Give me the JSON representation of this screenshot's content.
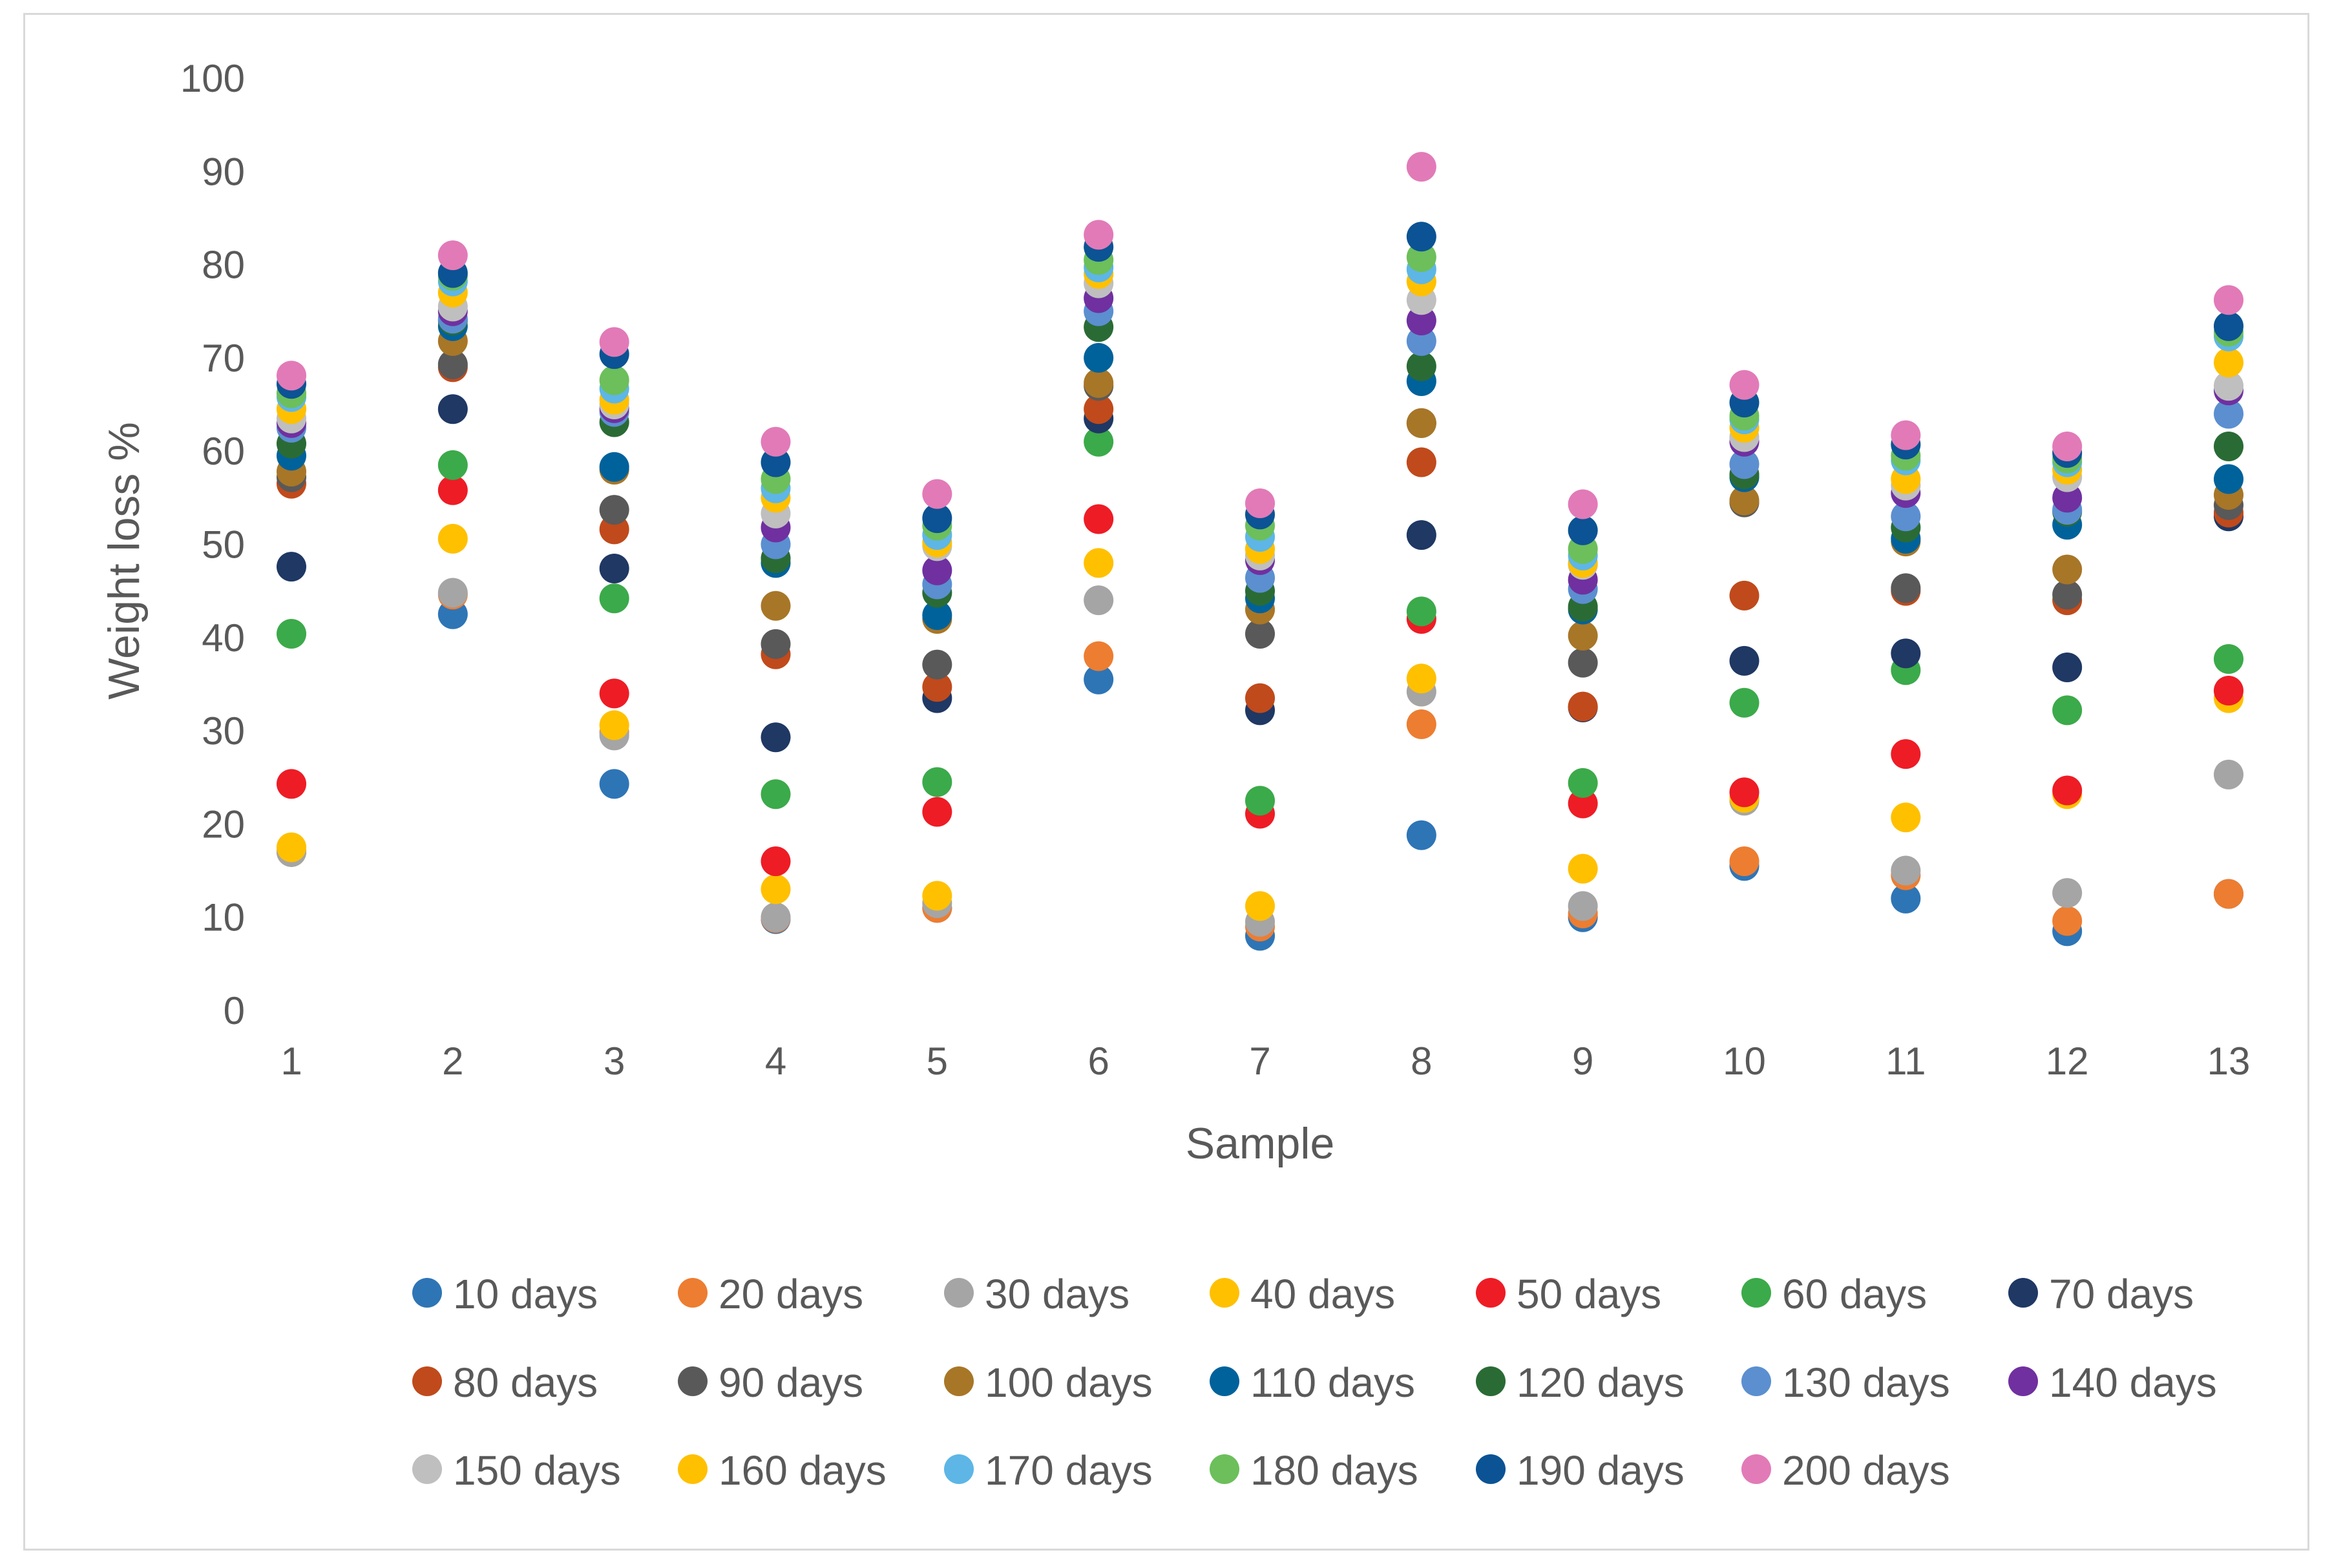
{
  "chart_data": {
    "type": "scatter",
    "title": "",
    "xlabel": "Sample",
    "ylabel": "Weight loss %",
    "x": [
      1,
      2,
      3,
      4,
      5,
      6,
      7,
      8,
      9,
      10,
      11,
      12,
      13
    ],
    "xticks": [
      "1",
      "2",
      "3",
      "4",
      "5",
      "6",
      "7",
      "8",
      "9",
      "10",
      "11",
      "12",
      "13"
    ],
    "yticks": [
      "0",
      "10",
      "20",
      "30",
      "40",
      "50",
      "60",
      "70",
      "80",
      "90",
      "100"
    ],
    "ylim": [
      0,
      100
    ],
    "grid": false,
    "legend_position": "bottom",
    "series": [
      {
        "name": "10 days",
        "color": "#2E75B6",
        "values": [
          17,
          42.5,
          24.3,
          9.8,
          11,
          35.5,
          8,
          18.8,
          10,
          15.5,
          12,
          8.5,
          12.5
        ]
      },
      {
        "name": "20 days",
        "color": "#ED7D31",
        "values": [
          17,
          44.6,
          29.8,
          9.9,
          11,
          38,
          9,
          30.7,
          10.4,
          16,
          14.5,
          9.6,
          12.5
        ]
      },
      {
        "name": "30 days",
        "color": "#A5A5A5",
        "values": [
          17,
          44.8,
          29.5,
          10,
          11.5,
          44,
          9.5,
          34.2,
          11.2,
          22.5,
          15,
          12.6,
          25.3
        ]
      },
      {
        "name": "40 days",
        "color": "#FFC000",
        "values": [
          17.5,
          50.6,
          30.6,
          13,
          12.3,
          48,
          11.2,
          35.6,
          15.2,
          22.8,
          20.7,
          23.2,
          33.5
        ]
      },
      {
        "name": "50 days",
        "color": "#EE1C25",
        "values": [
          24.3,
          55.8,
          34,
          16,
          21.3,
          52.7,
          21.1,
          42,
          22.2,
          23.4,
          27.5,
          23.6,
          34.3
        ]
      },
      {
        "name": "60 days",
        "color": "#3BAA4A",
        "values": [
          40.4,
          58.5,
          44.2,
          23.2,
          24.5,
          61,
          22.5,
          42.8,
          24.4,
          33,
          36.5,
          32.2,
          37.7
        ]
      },
      {
        "name": "70 days",
        "color": "#1F3864",
        "values": [
          47.6,
          64.5,
          47.4,
          29.3,
          33.5,
          63.5,
          32.2,
          51,
          32.5,
          37.5,
          38.3,
          36.8,
          53
        ]
      },
      {
        "name": "80 days",
        "color": "#C04A1B",
        "values": [
          56.5,
          69,
          51.6,
          38.2,
          34.7,
          64.5,
          33.5,
          58.8,
          32.6,
          44.5,
          45,
          44,
          53.4
        ]
      },
      {
        "name": "90 days",
        "color": "#595959",
        "values": [
          57.2,
          69.3,
          53.7,
          39.3,
          37.1,
          67,
          40.4,
          63,
          37.3,
          54.5,
          45.3,
          44.6,
          54.2
        ]
      },
      {
        "name": "100 days",
        "color": "#A87627",
        "values": [
          57.8,
          71.8,
          58,
          43.4,
          42,
          67.3,
          43,
          63,
          40.2,
          54.7,
          50.3,
          47.3,
          55.3
        ]
      },
      {
        "name": "110 days",
        "color": "#00629B",
        "values": [
          59.5,
          73.4,
          58.3,
          48,
          42.4,
          70,
          44.2,
          67.5,
          43,
          57.2,
          50.6,
          52.1,
          57
        ]
      },
      {
        "name": "120 days",
        "color": "#2A6B35",
        "values": [
          60.8,
          74,
          63.1,
          48.5,
          44.8,
          73.3,
          45,
          69.1,
          43.3,
          57.5,
          51.8,
          53.5,
          60.5
        ]
      },
      {
        "name": "130 days",
        "color": "#5B8FD0",
        "values": [
          62.5,
          74.2,
          64.2,
          50,
          45.7,
          75,
          46.4,
          71.8,
          45.2,
          58.6,
          53,
          53.7,
          64
        ]
      },
      {
        "name": "140 days",
        "color": "#7030A0",
        "values": [
          63,
          75,
          64.6,
          51.8,
          47.2,
          76.4,
          48.3,
          74,
          46.2,
          61,
          55.5,
          55,
          66.5
        ]
      },
      {
        "name": "150 days",
        "color": "#BFBFBF",
        "values": [
          63.5,
          75.5,
          65,
          53.3,
          49.8,
          78,
          48.8,
          76.2,
          47.8,
          61.5,
          56.3,
          57.2,
          67
        ]
      },
      {
        "name": "160 days",
        "color": "#FFC000",
        "values": [
          64.5,
          77,
          65.5,
          55,
          50.2,
          79,
          49.5,
          78.2,
          48,
          62.5,
          57,
          58,
          69.5
        ]
      },
      {
        "name": "170 days",
        "color": "#5DB6E6",
        "values": [
          65.8,
          78.2,
          66.7,
          56,
          51,
          79.7,
          50.8,
          79.5,
          48.8,
          63.4,
          59,
          58.8,
          72.3
        ]
      },
      {
        "name": "180 days",
        "color": "#6CBF5B",
        "values": [
          66.2,
          78.8,
          67.6,
          57,
          52,
          80.5,
          52,
          80.8,
          49.5,
          63.8,
          59.5,
          59.2,
          72.8
        ]
      },
      {
        "name": "190 days",
        "color": "#0B5394",
        "values": [
          67.2,
          79.1,
          70.4,
          58.8,
          52.8,
          81.9,
          53.2,
          83,
          51.5,
          65.2,
          60.7,
          59.8,
          73.4
        ]
      },
      {
        "name": "200 days",
        "color": "#E27AB8",
        "values": [
          68.1,
          81,
          71.7,
          61,
          55.4,
          83.2,
          54.4,
          90.5,
          54.3,
          67.1,
          61.7,
          60.5,
          76.2
        ]
      }
    ]
  }
}
